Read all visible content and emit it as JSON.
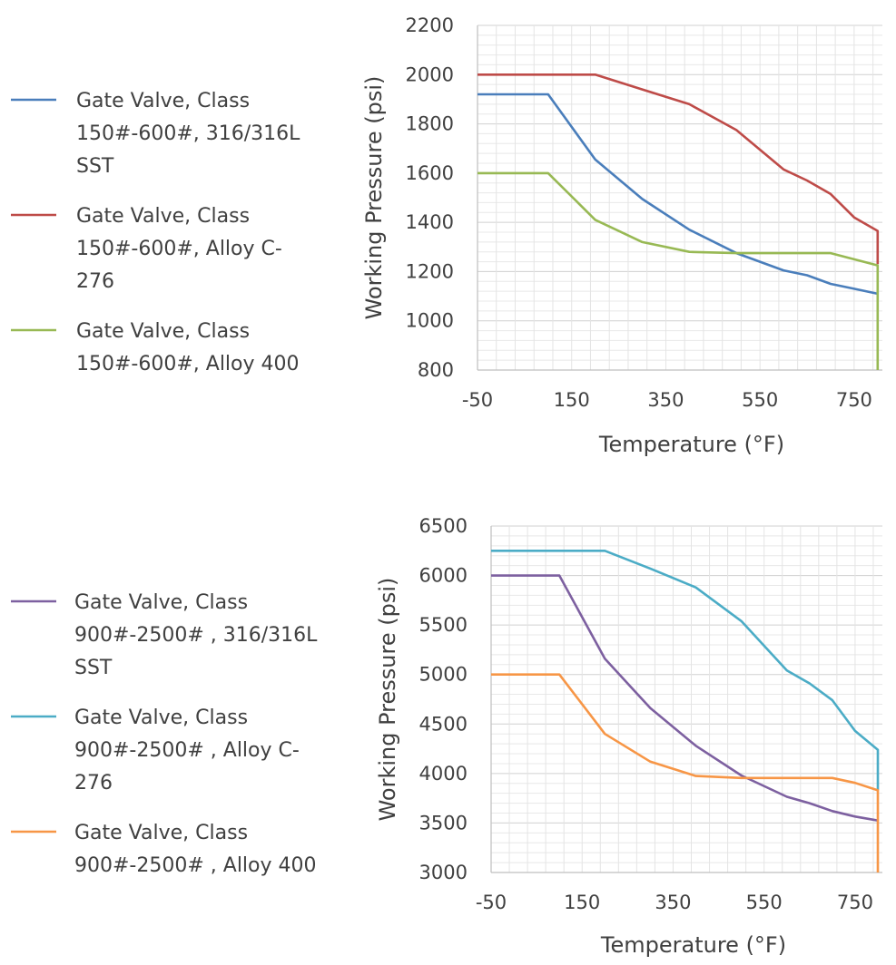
{
  "chart_data": [
    {
      "type": "line",
      "title": "",
      "xlabel": "Temperature (°F)",
      "ylabel": "Working Pressure  (psi)",
      "xlim": [
        -50,
        810
      ],
      "ylim": [
        800,
        2200
      ],
      "xticks": [
        -50,
        150,
        350,
        550,
        750
      ],
      "yticks": [
        800,
        1000,
        1200,
        1400,
        1600,
        1800,
        2000,
        2200
      ],
      "grid": true,
      "legend_position": "left",
      "series": [
        {
          "name": "Gate Valve, Class 150#-600#, 316/316L SST",
          "legend_lines": [
            "Gate Valve, Class",
            "150#-600#, 316/316L",
            "SST"
          ],
          "color": "#4A7EBB",
          "x": [
            -50,
            100,
            200,
            300,
            400,
            500,
            600,
            650,
            700,
            750,
            800,
            800
          ],
          "y": [
            1920,
            1920,
            1655,
            1495,
            1370,
            1275,
            1205,
            1185,
            1150,
            1130,
            1110,
            1110
          ]
        },
        {
          "name": "Gate Valve, Class 150#-600#, Alloy C-276",
          "legend_lines": [
            "Gate Valve, Class",
            "150#-600#, Alloy C-",
            "276"
          ],
          "color": "#BE4B48",
          "x": [
            -50,
            100,
            200,
            300,
            400,
            500,
            600,
            650,
            700,
            750,
            800,
            800
          ],
          "y": [
            2000,
            2000,
            2000,
            1940,
            1880,
            1775,
            1615,
            1570,
            1515,
            1420,
            1365,
            1230
          ]
        },
        {
          "name": "Gate Valve, Class 150#-600#, Alloy 400",
          "legend_lines": [
            "Gate Valve, Class",
            "150#-600#, Alloy 400"
          ],
          "color": "#98B954",
          "x": [
            -50,
            100,
            200,
            300,
            400,
            500,
            600,
            650,
            700,
            750,
            800,
            800
          ],
          "y": [
            1600,
            1600,
            1410,
            1320,
            1280,
            1275,
            1275,
            1275,
            1275,
            1250,
            1225,
            800
          ]
        }
      ]
    },
    {
      "type": "line",
      "title": "",
      "xlabel": "Temperature (°F)",
      "ylabel": "Working Pressure  (psi)",
      "xlim": [
        -50,
        810
      ],
      "ylim": [
        3000,
        6500
      ],
      "xticks": [
        -50,
        150,
        350,
        550,
        750
      ],
      "yticks": [
        3000,
        3500,
        4000,
        4500,
        5000,
        5500,
        6000,
        6500
      ],
      "grid": true,
      "legend_position": "left",
      "series": [
        {
          "name": "Gate Valve, Class 900#-2500# , 316/316L SST",
          "legend_lines": [
            "Gate Valve, Class",
            "900#-2500# , 316/316L",
            "SST"
          ],
          "color": "#7D60A0",
          "x": [
            -50,
            100,
            200,
            300,
            400,
            500,
            600,
            650,
            700,
            750,
            800,
            800
          ],
          "y": [
            6000,
            6000,
            5160,
            4660,
            4280,
            3980,
            3765,
            3700,
            3620,
            3565,
            3525,
            3525
          ]
        },
        {
          "name": "Gate Valve, Class 900#-2500# , Alloy C-276",
          "legend_lines": [
            "Gate Valve, Class",
            "900#-2500# , Alloy C-",
            "276"
          ],
          "color": "#4BACC6",
          "x": [
            -50,
            100,
            200,
            300,
            400,
            500,
            600,
            650,
            700,
            750,
            800,
            800
          ],
          "y": [
            6250,
            6250,
            6250,
            6070,
            5880,
            5540,
            5040,
            4910,
            4740,
            4430,
            4240,
            3830
          ]
        },
        {
          "name": "Gate Valve, Class 900#-2500# , Alloy 400",
          "legend_lines": [
            "Gate Valve, Class",
            "900#-2500# , Alloy 400"
          ],
          "color": "#F79646",
          "x": [
            -50,
            100,
            200,
            300,
            400,
            500,
            600,
            650,
            700,
            750,
            800,
            800
          ],
          "y": [
            5000,
            5000,
            4400,
            4120,
            3975,
            3955,
            3955,
            3955,
            3955,
            3905,
            3830,
            3000
          ]
        }
      ]
    }
  ]
}
